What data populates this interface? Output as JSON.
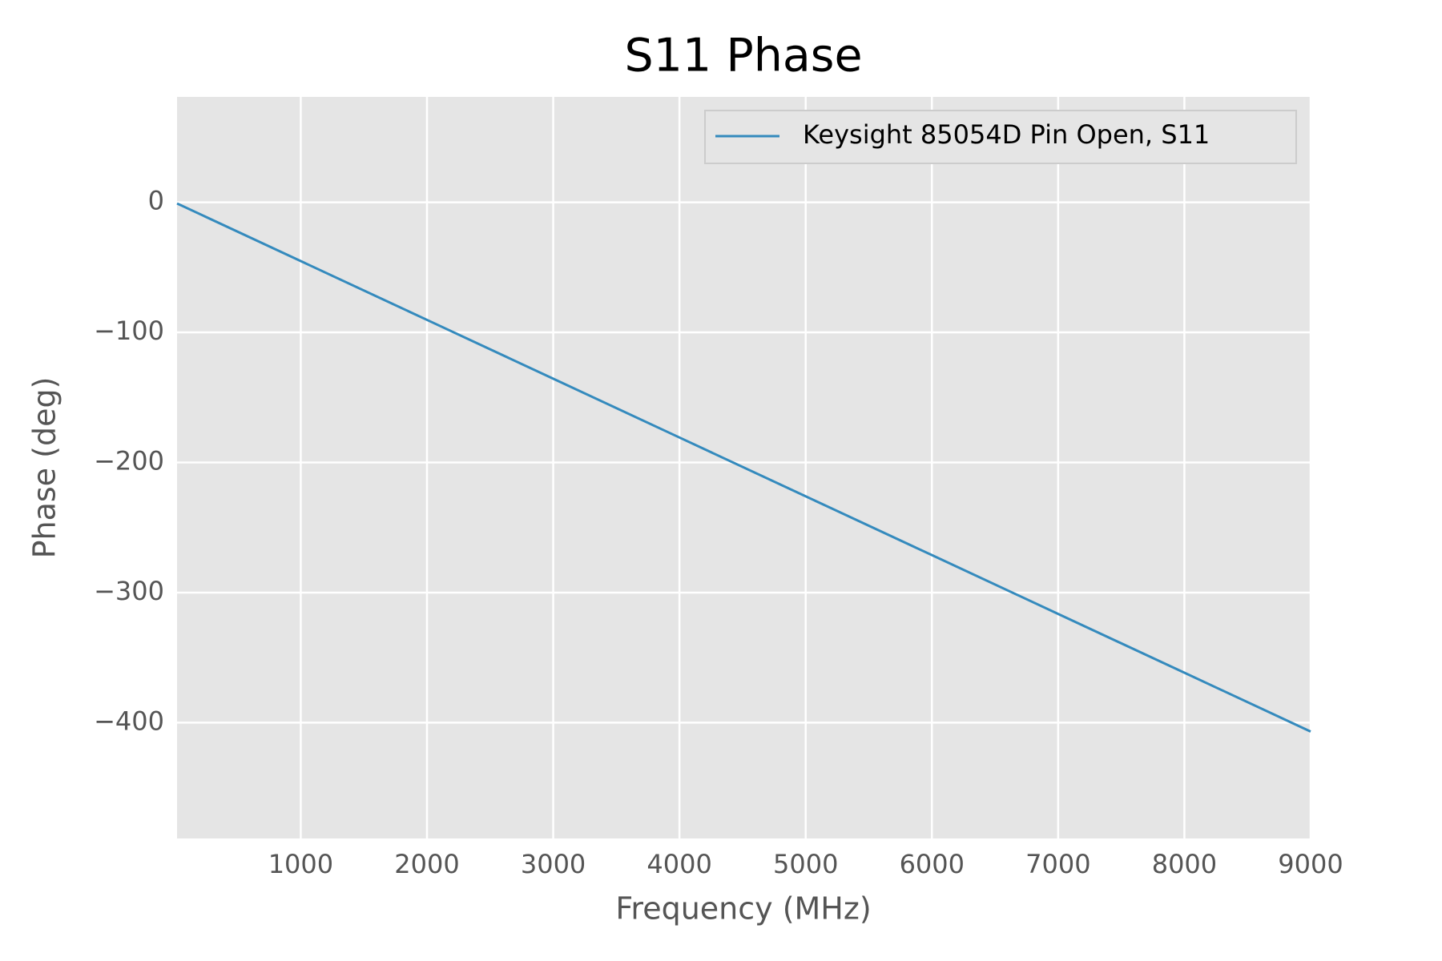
{
  "chart_data": {
    "type": "line",
    "title": "S11 Phase",
    "x_label": "Frequency (MHz)",
    "y_label": "Phase (deg)",
    "x": [
      20,
      1000,
      2000,
      3000,
      4000,
      5000,
      6000,
      7000,
      8000,
      9000
    ],
    "series": [
      {
        "name": "Keysight 85054D Pin Open, S11",
        "color": "#348abd",
        "values": [
          -0.9,
          -45.2,
          -90.4,
          -135.6,
          -180.8,
          -226,
          -271.2,
          -316.4,
          -361.6,
          -406.8
        ]
      }
    ],
    "xlim": [
      20,
      9000
    ],
    "xticks": [
      1000,
      2000,
      3000,
      4000,
      5000,
      6000,
      7000,
      8000,
      9000
    ],
    "ylim": [
      -489,
      81
    ],
    "yticks": [
      {
        "value": -400,
        "label": "−400"
      },
      {
        "value": -300,
        "label": "−300"
      },
      {
        "value": -200,
        "label": "−200"
      },
      {
        "value": -100,
        "label": "−100"
      },
      0
    ],
    "grid": true,
    "legend": "upper right"
  }
}
